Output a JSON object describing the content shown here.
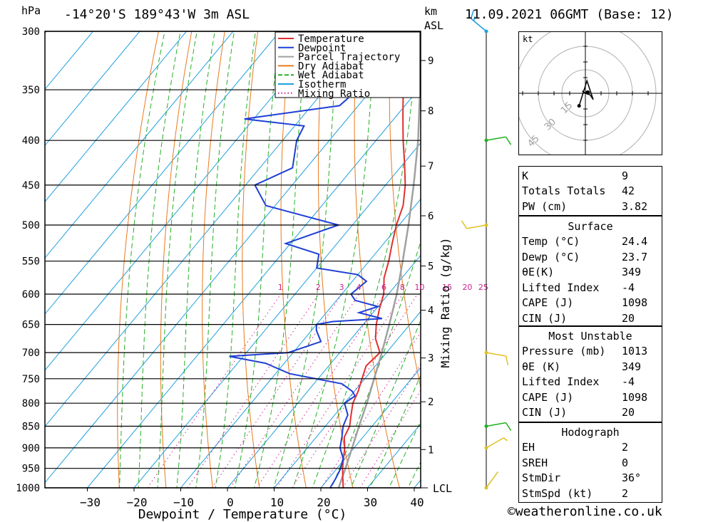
{
  "header": {
    "station": "-14°20'S  189°43'W  3m  ASL",
    "datetime": "11.09.2021  06GMT  (Base: 12)",
    "credit": "©weatheronline.co.uk"
  },
  "axes": {
    "pressure_unit": "hPa",
    "height_unit": "km",
    "height_unit2": "ASL",
    "xlabel": "Dewpoint / Temperature (°C)",
    "mixing_label": "Mixing Ratio (g/kg)",
    "lcl_label": "LCL"
  },
  "colors": {
    "temperature": "#e03030",
    "dewpoint": "#1f3fd6",
    "parcel": "#a0a0a0",
    "dry_adiabat": "#e87a1e",
    "wet_adiabat": "#24b024",
    "isotherm": "#1ea0e0",
    "mixing": "#d02090",
    "wind_blue": "#1ea0e0",
    "wind_green": "#20b020",
    "wind_yellow": "#e0c020"
  },
  "chart_data": {
    "type": "skew-t",
    "pressure_levels": [
      300,
      350,
      400,
      450,
      500,
      550,
      600,
      650,
      700,
      750,
      800,
      850,
      900,
      950,
      1000
    ],
    "x_ticks": [
      -30,
      -20,
      -10,
      0,
      10,
      20,
      30,
      40
    ],
    "xlim": [
      -40,
      40
    ],
    "ylim": [
      1000,
      300
    ],
    "height_km_ticks": [
      {
        "km": 1,
        "p": 904
      },
      {
        "km": 2,
        "p": 797
      },
      {
        "km": 3,
        "p": 710
      },
      {
        "km": 4,
        "p": 626
      },
      {
        "km": 5,
        "p": 557
      },
      {
        "km": 6,
        "p": 488
      },
      {
        "km": 7,
        "p": 428
      },
      {
        "km": 8,
        "p": 370
      },
      {
        "km": 9,
        "p": 324
      }
    ],
    "mixing_ratio_labels": [
      "1",
      "2",
      "3",
      "4",
      "6",
      "8",
      "10",
      "15",
      "20",
      "25"
    ],
    "mixing_ratio_values": [
      1,
      2,
      3,
      4,
      6,
      8,
      10,
      15,
      20,
      25
    ],
    "legend": [
      "Temperature",
      "Dewpoint",
      "Parcel Trajectory",
      "Dry Adiabat",
      "Wet Adiabat",
      "Isotherm",
      "Mixing Ratio"
    ],
    "temperature": [
      [
        1013,
        24.4
      ],
      [
        1000,
        24.8
      ],
      [
        975,
        23.0
      ],
      [
        950,
        21.2
      ],
      [
        925,
        19.6
      ],
      [
        900,
        18.0
      ],
      [
        875,
        16.0
      ],
      [
        850,
        15.2
      ],
      [
        825,
        13.5
      ],
      [
        800,
        11.8
      ],
      [
        775,
        10.8
      ],
      [
        750,
        9.4
      ],
      [
        725,
        8.0
      ],
      [
        700,
        8.6
      ],
      [
        675,
        5.2
      ],
      [
        650,
        2.8
      ],
      [
        625,
        0.8
      ],
      [
        600,
        -1.0
      ],
      [
        575,
        -3.8
      ],
      [
        550,
        -5.8
      ],
      [
        525,
        -8.2
      ],
      [
        500,
        -10.6
      ],
      [
        475,
        -12.6
      ],
      [
        450,
        -15.8
      ],
      [
        425,
        -19.8
      ],
      [
        400,
        -24.2
      ],
      [
        375,
        -28.6
      ],
      [
        350,
        -33.2
      ],
      [
        325,
        -37.6
      ],
      [
        300,
        -42.0
      ]
    ],
    "dewpoint": [
      [
        1013,
        23.7
      ],
      [
        1000,
        22.0
      ],
      [
        975,
        21.5
      ],
      [
        950,
        20.8
      ],
      [
        925,
        19.5
      ],
      [
        900,
        17.0
      ],
      [
        875,
        15.5
      ],
      [
        850,
        13.8
      ],
      [
        825,
        12.8
      ],
      [
        800,
        10.0
      ],
      [
        785,
        11.0
      ],
      [
        775,
        9.5
      ],
      [
        760,
        6.0
      ],
      [
        740,
        -7.0
      ],
      [
        720,
        -14.0
      ],
      [
        707,
        -23.0
      ],
      [
        700,
        -11.0
      ],
      [
        680,
        -6.0
      ],
      [
        660,
        -9.0
      ],
      [
        650,
        -10.0
      ],
      [
        645,
        -7.0
      ],
      [
        640,
        3.0
      ],
      [
        630,
        -3.0
      ],
      [
        620,
        0.0
      ],
      [
        610,
        -6.0
      ],
      [
        600,
        -8.0
      ],
      [
        580,
        -7.0
      ],
      [
        570,
        -10.0
      ],
      [
        560,
        -20.0
      ],
      [
        540,
        -22.0
      ],
      [
        525,
        -31.0
      ],
      [
        500,
        -23.0
      ],
      [
        475,
        -42.0
      ],
      [
        450,
        -48.0
      ],
      [
        430,
        -43.0
      ],
      [
        400,
        -47.0
      ],
      [
        385,
        -48.0
      ],
      [
        378,
        -62.0
      ],
      [
        365,
        -44.0
      ],
      [
        350,
        -43.0
      ],
      [
        335,
        -55.0
      ],
      [
        320,
        -57.0
      ],
      [
        300,
        -60.0
      ]
    ],
    "parcel": [
      [
        1013,
        24.4
      ],
      [
        1000,
        23.8
      ],
      [
        950,
        21.8
      ],
      [
        900,
        19.6
      ],
      [
        850,
        17.2
      ],
      [
        800,
        14.8
      ],
      [
        750,
        12.0
      ],
      [
        700,
        9.0
      ],
      [
        650,
        5.6
      ],
      [
        600,
        1.8
      ],
      [
        550,
        -2.8
      ],
      [
        500,
        -8.0
      ],
      [
        450,
        -14.0
      ],
      [
        400,
        -21.0
      ],
      [
        350,
        -29.6
      ],
      [
        300,
        -40.0
      ]
    ],
    "wind_barbs": [
      {
        "p": 1000,
        "dir": 36,
        "speed_kt": 2,
        "color": "yellow"
      },
      {
        "p": 900,
        "dir": 60,
        "speed_kt": 5,
        "color": "yellow"
      },
      {
        "p": 850,
        "dir": 80,
        "speed_kt": 10,
        "color": "green"
      },
      {
        "p": 700,
        "dir": 100,
        "speed_kt": 10,
        "color": "yellow"
      },
      {
        "p": 500,
        "dir": 260,
        "speed_kt": 10,
        "color": "yellow"
      },
      {
        "p": 400,
        "dir": 80,
        "speed_kt": 10,
        "color": "green"
      },
      {
        "p": 300,
        "dir": 310,
        "speed_kt": 15,
        "color": "blue"
      }
    ]
  },
  "hodograph": {
    "unit": "kt",
    "ring_labels": [
      "15",
      "30",
      "45"
    ],
    "trace_kt": [
      [
        -2,
        1.5
      ],
      [
        0,
        0
      ],
      [
        3,
        -1
      ],
      [
        5,
        -4
      ],
      [
        1,
        8
      ],
      [
        -4,
        -8
      ]
    ]
  },
  "indices": {
    "general": [
      {
        "k": "K",
        "v": "9"
      },
      {
        "k": "Totals Totals",
        "v": "42"
      },
      {
        "k": "PW (cm)",
        "v": "3.82"
      }
    ],
    "surface_title": "Surface",
    "surface": [
      {
        "k": "Temp (°C)",
        "v": "24.4"
      },
      {
        "k": "Dewp (°C)",
        "v": "23.7"
      },
      {
        "k": "θE(K)",
        "v": "349"
      },
      {
        "k": "Lifted Index",
        "v": "-4"
      },
      {
        "k": "CAPE (J)",
        "v": "1098"
      },
      {
        "k": "CIN (J)",
        "v": "20"
      }
    ],
    "mu_title": "Most Unstable",
    "mu": [
      {
        "k": "Pressure (mb)",
        "v": "1013"
      },
      {
        "k": "θE (K)",
        "v": "349"
      },
      {
        "k": "Lifted Index",
        "v": "-4"
      },
      {
        "k": "CAPE (J)",
        "v": "1098"
      },
      {
        "k": "CIN (J)",
        "v": "20"
      }
    ],
    "hodo_title": "Hodograph",
    "hodo": [
      {
        "k": "EH",
        "v": "2"
      },
      {
        "k": "SREH",
        "v": "0"
      },
      {
        "k": "StmDir",
        "v": "36°"
      },
      {
        "k": "StmSpd (kt)",
        "v": "2"
      }
    ]
  }
}
